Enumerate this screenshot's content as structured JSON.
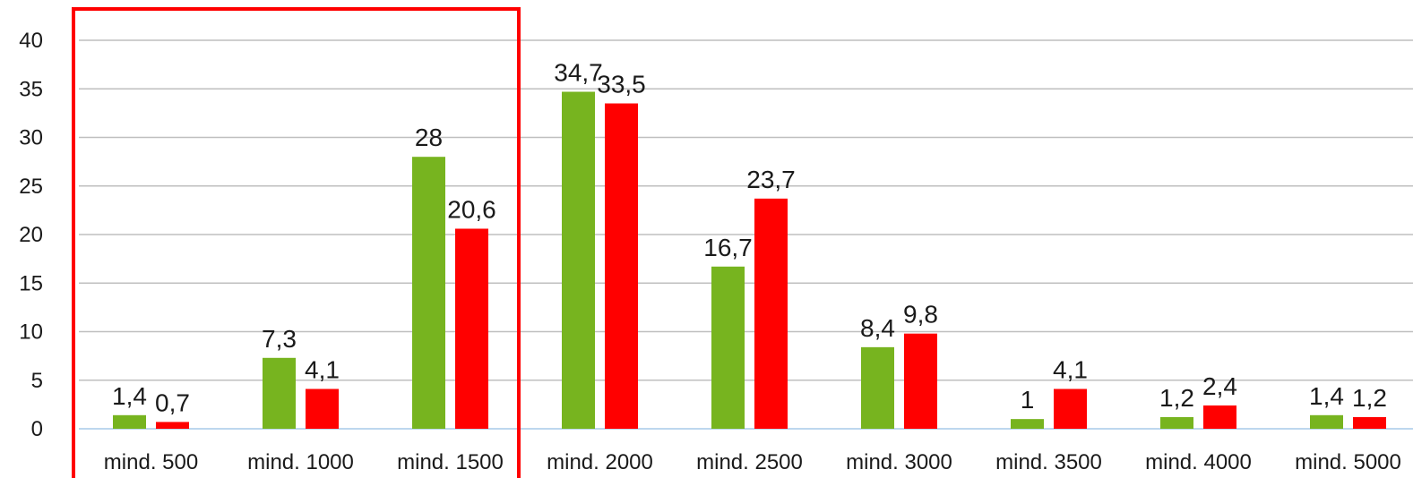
{
  "chart_data": {
    "type": "bar",
    "categories": [
      "mind. 500",
      "mind. 1000",
      "mind. 1500",
      "mind. 2000",
      "mind. 2500",
      "mind. 3000",
      "mind. 3500",
      "mind. 4000",
      "mind. 5000"
    ],
    "series": [
      {
        "values": [
          1.4,
          7.3,
          28,
          34.7,
          16.7,
          8.4,
          1,
          1.2,
          1.4
        ],
        "labels": [
          "1,4",
          "7,3",
          "28",
          "34,7",
          "16,7",
          "8,4",
          "1",
          "1,2",
          "1,4"
        ],
        "color": "#77b41f"
      },
      {
        "values": [
          0.7,
          4.1,
          20.6,
          33.5,
          23.7,
          9.8,
          4.1,
          2.4,
          1.2
        ],
        "labels": [
          "0,7",
          "4,1",
          "20,6",
          "33,5",
          "23,7",
          "9,8",
          "4,1",
          "2,4",
          "1,2"
        ],
        "color": "#ff0000"
      }
    ],
    "yticks": [
      "0",
      "5",
      "10",
      "15",
      "20",
      "25",
      "30",
      "35",
      "40"
    ],
    "ylim": [
      0,
      40
    ],
    "grid": true,
    "legend": "none",
    "highlight": {
      "categories": [
        "mind. 500",
        "mind. 1000",
        "mind. 1500"
      ],
      "color": "#ff0000"
    }
  }
}
